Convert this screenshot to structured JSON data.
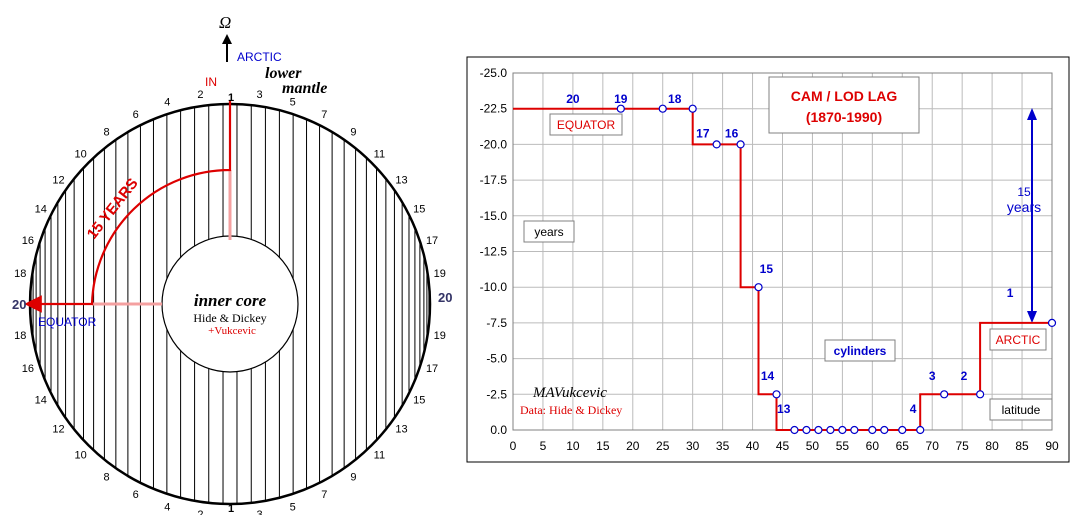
{
  "diagram": {
    "omega": "Ω",
    "arctic": "ARCTIC",
    "in": "IN",
    "lower_mantle_1": "lower",
    "lower_mantle_2": "mantle",
    "years_arc": "15 YEARS",
    "twenty": "20",
    "equator": "EQUATOR",
    "inner_core": "inner core",
    "credit_1": "Hide & Dickey",
    "credit_2": "+Vukcevic",
    "top_left_numbers": [
      "2",
      "4",
      "6",
      "8",
      "10",
      "12",
      "14",
      "16",
      "18"
    ],
    "top_right_numbers": [
      "3",
      "5",
      "7",
      "9",
      "11",
      "13",
      "15",
      "17",
      "19"
    ],
    "bottom_left_numbers": [
      "2",
      "4",
      "6",
      "8",
      "10",
      "12",
      "14",
      "16",
      "18"
    ],
    "bottom_right_numbers": [
      "3",
      "5",
      "7",
      "9",
      "11",
      "13",
      "15",
      "17",
      "19"
    ],
    "one": "1",
    "colors": {
      "red": "#dd0000",
      "blue": "#0000cc",
      "black": "#000000"
    }
  },
  "chart_data": {
    "type": "line",
    "title_line1": "CAM / LOD  LAG",
    "title_line2": "(1870-1990)",
    "x": [
      0,
      18,
      18,
      25,
      30,
      30,
      34,
      38,
      38,
      41,
      41,
      44,
      44,
      47,
      49,
      51,
      53,
      55,
      57,
      60,
      62,
      65,
      68,
      68,
      72,
      78,
      78,
      90
    ],
    "y": [
      -22.5,
      -22.5,
      -22.5,
      -22.5,
      -22.5,
      -20,
      -20,
      -20,
      -10,
      -10,
      -2.5,
      -2.5,
      0,
      0,
      0,
      0,
      0,
      0,
      0,
      0,
      0,
      0,
      0,
      -2.5,
      -2.5,
      -2.5,
      -7.5,
      -7.5
    ],
    "markers": [
      {
        "x": 18,
        "y": -22.5
      },
      {
        "x": 25,
        "y": -22.5
      },
      {
        "x": 30,
        "y": -22.5
      },
      {
        "x": 34,
        "y": -20
      },
      {
        "x": 38,
        "y": -20
      },
      {
        "x": 41,
        "y": -10
      },
      {
        "x": 44,
        "y": -2.5
      },
      {
        "x": 47,
        "y": 0
      },
      {
        "x": 49,
        "y": 0
      },
      {
        "x": 51,
        "y": 0
      },
      {
        "x": 53,
        "y": 0
      },
      {
        "x": 55,
        "y": 0
      },
      {
        "x": 57,
        "y": 0
      },
      {
        "x": 60,
        "y": 0
      },
      {
        "x": 62,
        "y": 0
      },
      {
        "x": 65,
        "y": 0
      },
      {
        "x": 68,
        "y": 0
      },
      {
        "x": 72,
        "y": -2.5
      },
      {
        "x": 78,
        "y": -2.5
      },
      {
        "x": 90,
        "y": -7.5
      }
    ],
    "point_labels": [
      {
        "text": "20",
        "x": 10,
        "y": -22.9
      },
      {
        "text": "19",
        "x": 18,
        "y": -22.9
      },
      {
        "text": "18",
        "x": 27,
        "y": -22.9
      },
      {
        "text": "17",
        "x": 31.7,
        "y": -20.5
      },
      {
        "text": "16",
        "x": 36.5,
        "y": -20.5
      },
      {
        "text": "15",
        "x": 42.3,
        "y": -11
      },
      {
        "text": "14",
        "x": 42.5,
        "y": -3.5
      },
      {
        "text": "13",
        "x": 45.2,
        "y": -1.2
      },
      {
        "text": "4",
        "x": 66.8,
        "y": -1.2
      },
      {
        "text": "3",
        "x": 70,
        "y": -3.5
      },
      {
        "text": "2",
        "x": 75.3,
        "y": -3.5
      },
      {
        "text": "1",
        "x": 83,
        "y": -9.3
      }
    ],
    "xticks": [
      "0",
      "5",
      "10",
      "15",
      "20",
      "25",
      "30",
      "35",
      "40",
      "45",
      "50",
      "55",
      "60",
      "65",
      "70",
      "75",
      "80",
      "85",
      "90"
    ],
    "yticks": [
      "-25.0",
      "-22.5",
      "-20.0",
      "-17.5",
      "-15.0",
      "-12.5",
      "-10.0",
      "-7.5",
      "-5.0",
      "-2.5",
      "0.0"
    ],
    "xlim": [
      0,
      90
    ],
    "ylim": [
      -25,
      0
    ],
    "grid": true,
    "box_equator": "EQUATOR",
    "box_years": "years",
    "box_cylinders": "cylinders",
    "box_arctic": "ARCTIC",
    "box_latitude": "latitude",
    "annotation_15": "15",
    "annotation_years": "years",
    "author": "MAVukcevic",
    "data_credit": "Data: Hide & Dickey",
    "colors": {
      "line": "#dd0000",
      "marker": "#0000cc",
      "grid": "#bbbbbb"
    }
  }
}
